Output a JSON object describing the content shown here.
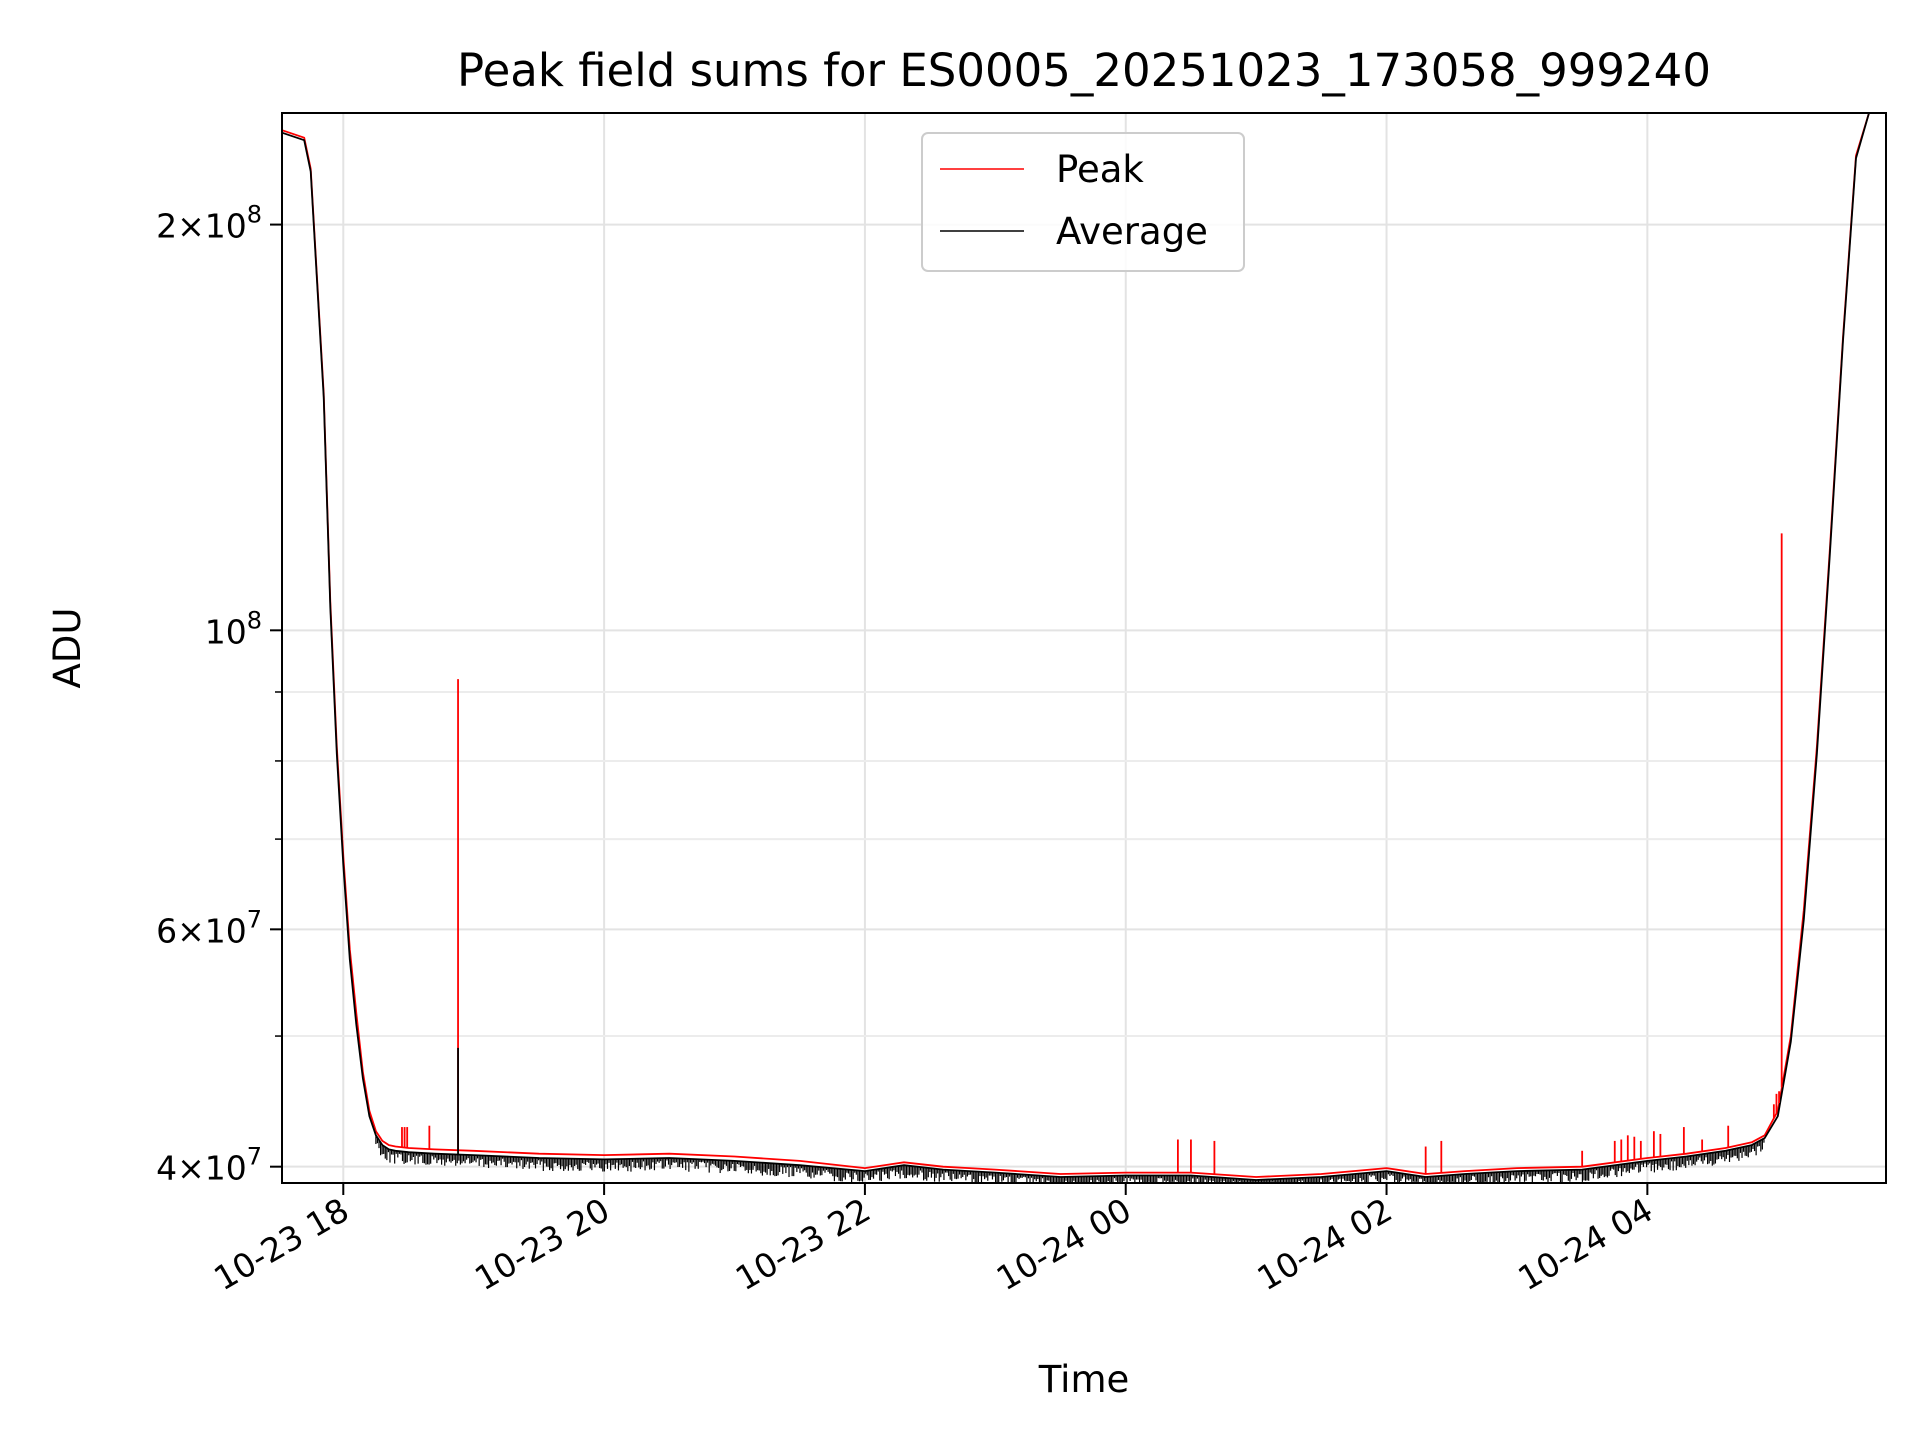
{
  "chart_data": {
    "type": "line",
    "title": "Peak field sums for ES0005_20251023_173058_999240",
    "xlabel": "Time",
    "ylabel": "ADU",
    "yscale": "log",
    "xlim": [
      -0.47,
      11.83
    ],
    "ylim": [
      38900000,
      242000000
    ],
    "grid": true,
    "legend_location": "upper-center",
    "x_ticks": [
      {
        "value": 0,
        "label": "10-23 18"
      },
      {
        "value": 2,
        "label": "10-23 20"
      },
      {
        "value": 4,
        "label": "10-23 22"
      },
      {
        "value": 6,
        "label": "10-24 00"
      },
      {
        "value": 8,
        "label": "10-24 02"
      },
      {
        "value": 10,
        "label": "10-24 04"
      }
    ],
    "y_major_ticks": [
      {
        "value": 40000000,
        "mantissa": "4",
        "exponent": "7"
      },
      {
        "value": 60000000,
        "mantissa": "6",
        "exponent": "7"
      },
      {
        "value": 100000000,
        "mantissa": "",
        "exponent": "8"
      },
      {
        "value": 200000000,
        "mantissa": "2",
        "exponent": "8"
      }
    ],
    "y_minor_ticks": [
      50000000,
      70000000,
      80000000,
      90000000,
      300000000
    ],
    "tick_base": "10",
    "times_sign": "×",
    "series": [
      {
        "name": "Peak",
        "color": "#ff0000",
        "x": [
          -0.47,
          -0.3,
          -0.25,
          -0.15,
          -0.1,
          -0.05,
          0.0,
          0.05,
          0.1,
          0.15,
          0.2,
          0.25,
          0.3,
          0.35,
          0.4,
          0.5,
          0.7,
          1.0,
          1.5,
          2.0,
          2.5,
          3.0,
          3.5,
          4.0,
          4.3,
          4.6,
          4.8,
          5.0,
          5.5,
          6.0,
          6.5,
          7.0,
          7.5,
          8.0,
          8.3,
          8.6,
          9.0,
          9.5,
          10.0,
          10.3,
          10.6,
          10.8,
          10.9,
          11.0,
          11.1,
          11.2,
          11.3,
          11.4,
          11.5,
          11.6,
          11.7,
          11.83
        ],
        "y": [
          235000000,
          232000000,
          220000000,
          150000000,
          105000000,
          82000000,
          68000000,
          58000000,
          52000000,
          47000000,
          44000000,
          42500000,
          41800000,
          41500000,
          41400000,
          41300000,
          41200000,
          41100000,
          40900000,
          40800000,
          40900000,
          40700000,
          40400000,
          39900000,
          40300000,
          40000000,
          39900000,
          39800000,
          39500000,
          39600000,
          39600000,
          39300000,
          39500000,
          39900000,
          39500000,
          39700000,
          39900000,
          40000000,
          40600000,
          40900000,
          41300000,
          41700000,
          42200000,
          44000000,
          50000000,
          62000000,
          82000000,
          115000000,
          165000000,
          225000000,
          242000000,
          242000000
        ]
      },
      {
        "name": "Average",
        "color": "#000000",
        "x": [
          -0.47,
          -0.3,
          -0.25,
          -0.15,
          -0.1,
          -0.05,
          0.0,
          0.05,
          0.1,
          0.15,
          0.2,
          0.25,
          0.3,
          0.35,
          0.4,
          0.5,
          0.7,
          1.0,
          1.5,
          2.0,
          2.5,
          3.0,
          3.5,
          4.0,
          4.3,
          4.6,
          4.8,
          5.0,
          5.5,
          6.0,
          6.5,
          7.0,
          7.5,
          8.0,
          8.3,
          8.6,
          9.0,
          9.5,
          10.0,
          10.3,
          10.6,
          10.8,
          10.9,
          11.0,
          11.1,
          11.2,
          11.3,
          11.4,
          11.5,
          11.6,
          11.7,
          11.83
        ],
        "y": [
          234000000,
          231000000,
          219000000,
          149000000,
          104000000,
          81000000,
          67000000,
          57000000,
          51000000,
          46500000,
          43600000,
          42200000,
          41500000,
          41200000,
          41100000,
          41000000,
          40900000,
          40800000,
          40600000,
          40500000,
          40600000,
          40400000,
          40100000,
          39700000,
          40100000,
          39800000,
          39700000,
          39600000,
          39300000,
          39400000,
          39400000,
          39100000,
          39300000,
          39700000,
          39300000,
          39500000,
          39700000,
          39800000,
          40400000,
          40700000,
          41100000,
          41500000,
          42000000,
          43600000,
          49500000,
          61000000,
          81000000,
          114000000,
          164000000,
          224000000,
          242000000,
          242000000
        ]
      }
    ],
    "peak_spikes": [
      {
        "x": 0.45,
        "y": 42800000
      },
      {
        "x": 0.47,
        "y": 42800000
      },
      {
        "x": 0.49,
        "y": 42800000
      },
      {
        "x": 0.66,
        "y": 42900000
      },
      {
        "x": 0.88,
        "y": 92000000
      },
      {
        "x": 6.4,
        "y": 41900000
      },
      {
        "x": 6.5,
        "y": 41900000
      },
      {
        "x": 6.68,
        "y": 41800000
      },
      {
        "x": 8.3,
        "y": 41400000
      },
      {
        "x": 8.42,
        "y": 41800000
      },
      {
        "x": 9.5,
        "y": 41100000
      },
      {
        "x": 9.75,
        "y": 41800000
      },
      {
        "x": 9.8,
        "y": 41900000
      },
      {
        "x": 9.85,
        "y": 42200000
      },
      {
        "x": 9.9,
        "y": 42100000
      },
      {
        "x": 9.95,
        "y": 41800000
      },
      {
        "x": 10.05,
        "y": 42500000
      },
      {
        "x": 10.1,
        "y": 42300000
      },
      {
        "x": 10.28,
        "y": 42800000
      },
      {
        "x": 10.42,
        "y": 41900000
      },
      {
        "x": 10.62,
        "y": 42900000
      },
      {
        "x": 10.97,
        "y": 44500000
      },
      {
        "x": 10.99,
        "y": 45300000
      },
      {
        "x": 11.01,
        "y": 45500000
      },
      {
        "x": 11.03,
        "y": 118000000
      }
    ],
    "average_spikes": [
      {
        "x": 0.88,
        "y": 49000000
      }
    ]
  }
}
